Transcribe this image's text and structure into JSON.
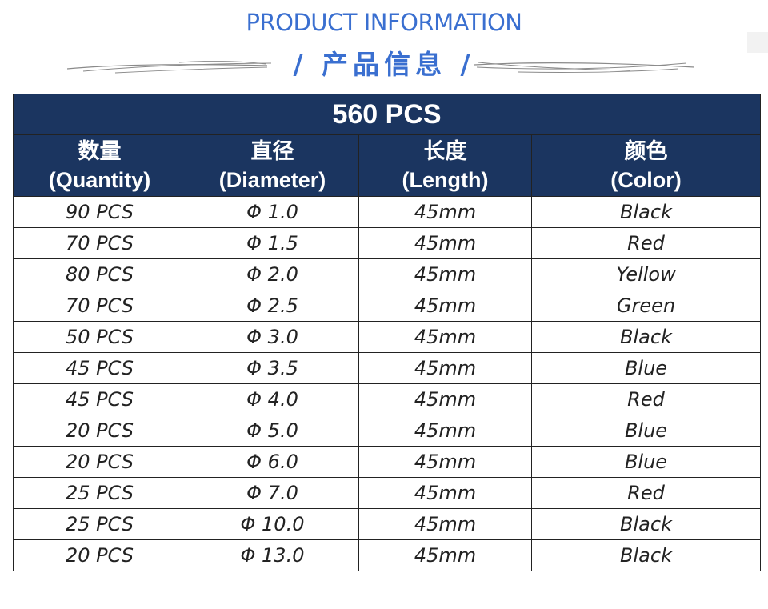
{
  "header": {
    "title_en": "PRODUCT INFORMATION",
    "title_cn": "/ 产品信息 /"
  },
  "table": {
    "total": "560 PCS",
    "columns": [
      {
        "cn": "数量",
        "en": "(Quantity)"
      },
      {
        "cn": "直径",
        "en": "(Diameter)"
      },
      {
        "cn": "长度",
        "en": "(Length)"
      },
      {
        "cn": "颜色",
        "en": "(Color)"
      }
    ],
    "rows": [
      [
        "90 PCS",
        "Φ 1.0",
        "45mm",
        "Black"
      ],
      [
        "70 PCS",
        "Φ 1.5",
        "45mm",
        "Red"
      ],
      [
        "80 PCS",
        "Φ 2.0",
        "45mm",
        "Yellow"
      ],
      [
        "70 PCS",
        "Φ 2.5",
        "45mm",
        "Green"
      ],
      [
        "50 PCS",
        "Φ 3.0",
        "45mm",
        "Black"
      ],
      [
        "45 PCS",
        "Φ 3.5",
        "45mm",
        "Blue"
      ],
      [
        "45 PCS",
        "Φ 4.0",
        "45mm",
        "Red"
      ],
      [
        "20 PCS",
        "Φ 5.0",
        "45mm",
        "Blue"
      ],
      [
        "20 PCS",
        "Φ 6.0",
        "45mm",
        "Blue"
      ],
      [
        "25 PCS",
        "Φ 7.0",
        "45mm",
        "Red"
      ],
      [
        "25 PCS",
        "Φ 10.0",
        "45mm",
        "Black"
      ],
      [
        "20 PCS",
        "Φ 13.0",
        "45mm",
        "Black"
      ]
    ]
  },
  "colors": {
    "title_blue": "#3a6fd0",
    "header_navy": "#1b3560"
  }
}
